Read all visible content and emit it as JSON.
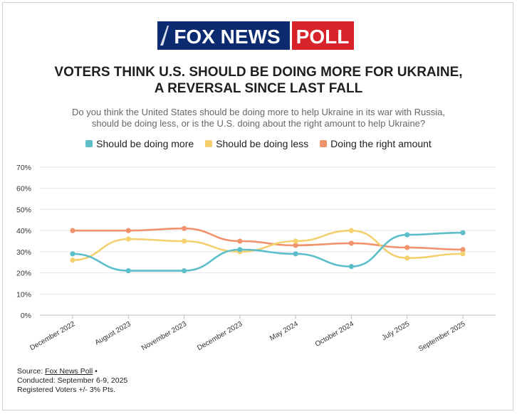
{
  "logo": {
    "brand": "FOX NEWS",
    "word": "POLL"
  },
  "title": {
    "line1": "VOTERS THINK U.S. SHOULD BE DOING MORE FOR UKRAINE,",
    "line2": "A REVERSAL SINCE LAST FALL"
  },
  "subtitle": {
    "line1": "Do you think the United States should be doing more to help Ukraine in its war with Russia,",
    "line2": "should be doing less, or is the U.S. doing about the right amount to help Ukraine?"
  },
  "legend": [
    {
      "label": "Should be doing more",
      "color": "#5bbec8"
    },
    {
      "label": "Should be doing less",
      "color": "#f4d06f"
    },
    {
      "label": "Doing the right amount",
      "color": "#f0926b"
    }
  ],
  "chart_data": {
    "type": "line",
    "categories": [
      "December 2022",
      "August 2023",
      "November 2023",
      "December 2023",
      "May 2024",
      "October 2024",
      "July 2025",
      "September 2025"
    ],
    "series": [
      {
        "name": "Should be doing more",
        "color": "#5bbec8",
        "values": [
          29,
          21,
          21,
          31,
          29,
          23,
          38,
          39
        ]
      },
      {
        "name": "Should be doing less",
        "color": "#f4d06f",
        "values": [
          26,
          36,
          35,
          30,
          35,
          40,
          27,
          29
        ]
      },
      {
        "name": "Doing the right amount",
        "color": "#f0926b",
        "values": [
          40,
          40,
          41,
          35,
          33,
          34,
          32,
          31
        ]
      }
    ],
    "yticks": [
      "0%",
      "10%",
      "20%",
      "30%",
      "40%",
      "50%",
      "60%",
      "70%"
    ],
    "ylim": [
      0,
      70
    ],
    "grid": true,
    "legend_position": "top"
  },
  "source": {
    "prefix": "Source: ",
    "link": "Fox News Poll",
    "suffix": " •",
    "conducted": "Conducted: September 6-9, 2025",
    "sample": "Registered Voters +/- 3% Pts."
  }
}
